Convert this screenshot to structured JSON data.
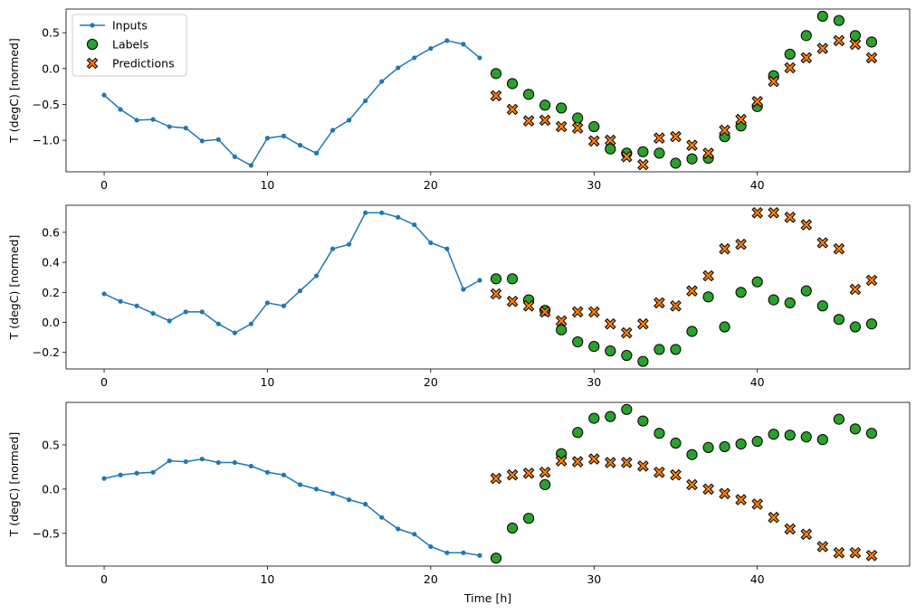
{
  "colors": {
    "inputs": "#1f77b4",
    "labels": "#2ca02c",
    "predictions": "#ff7f0e",
    "marker_edge": "#000000"
  },
  "legend": {
    "placement": "upper-left",
    "entries": [
      "Inputs",
      "Labels",
      "Predictions"
    ]
  },
  "chart_data": [
    {
      "type": "line+scatter",
      "ylabel": "T (degC) [normed]",
      "xlabel": "",
      "xlim": [
        -2.33,
        49.33
      ],
      "ylim": [
        -1.44,
        0.83
      ],
      "xticks": [
        0,
        10,
        20,
        30,
        40
      ],
      "yticks": [
        0.5,
        0.0,
        -0.5,
        -1.0
      ],
      "ytick_labels": [
        "0.5",
        "0.0",
        "−0.5",
        "−1.0"
      ],
      "grid": false,
      "series": [
        {
          "name": "Inputs",
          "x": [
            0,
            1,
            2,
            3,
            4,
            5,
            6,
            7,
            8,
            9,
            10,
            11,
            12,
            13,
            14,
            15,
            16,
            17,
            18,
            19,
            20,
            21,
            22,
            23
          ],
          "values": [
            -0.37,
            -0.57,
            -0.72,
            -0.71,
            -0.81,
            -0.83,
            -1.01,
            -0.99,
            -1.23,
            -1.35,
            -0.97,
            -0.94,
            -1.07,
            -1.18,
            -0.86,
            -0.72,
            -0.45,
            -0.18,
            0.01,
            0.15,
            0.28,
            0.39,
            0.34,
            0.15
          ]
        },
        {
          "name": "Labels",
          "x": [
            24,
            25,
            26,
            27,
            28,
            29,
            30,
            31,
            32,
            33,
            34,
            35,
            36,
            37,
            38,
            39,
            40,
            41,
            42,
            43,
            44,
            45,
            46,
            47
          ],
          "values": [
            -0.07,
            -0.21,
            -0.36,
            -0.51,
            -0.55,
            -0.69,
            -0.81,
            -1.12,
            -1.18,
            -1.16,
            -1.18,
            -1.32,
            -1.26,
            -1.25,
            -0.95,
            -0.8,
            -0.53,
            -0.1,
            0.2,
            0.46,
            0.73,
            0.67,
            0.46,
            0.37
          ]
        },
        {
          "name": "Predictions",
          "x": [
            24,
            25,
            26,
            27,
            28,
            29,
            30,
            31,
            32,
            33,
            34,
            35,
            36,
            37,
            38,
            39,
            40,
            41,
            42,
            43,
            44,
            45,
            46,
            47
          ],
          "values": [
            -0.38,
            -0.57,
            -0.73,
            -0.72,
            -0.81,
            -0.83,
            -1.01,
            -1.0,
            -1.23,
            -1.34,
            -0.97,
            -0.95,
            -1.07,
            -1.18,
            -0.86,
            -0.71,
            -0.46,
            -0.18,
            0.01,
            0.15,
            0.28,
            0.39,
            0.34,
            0.15
          ]
        }
      ]
    },
    {
      "type": "line+scatter",
      "ylabel": "T (degC) [normed]",
      "xlabel": "",
      "xlim": [
        -2.33,
        49.33
      ],
      "ylim": [
        -0.31,
        0.78
      ],
      "xticks": [
        0,
        10,
        20,
        30,
        40
      ],
      "yticks": [
        0.6,
        0.4,
        0.2,
        0.0,
        -0.2
      ],
      "ytick_labels": [
        "0.6",
        "0.4",
        "0.2",
        "0.0",
        "−0.2"
      ],
      "grid": false,
      "series": [
        {
          "name": "Inputs",
          "x": [
            0,
            1,
            2,
            3,
            4,
            5,
            6,
            7,
            8,
            9,
            10,
            11,
            12,
            13,
            14,
            15,
            16,
            17,
            18,
            19,
            20,
            21,
            22,
            23
          ],
          "values": [
            0.19,
            0.14,
            0.11,
            0.06,
            0.01,
            0.07,
            0.07,
            -0.01,
            -0.07,
            -0.01,
            0.13,
            0.11,
            0.21,
            0.31,
            0.49,
            0.52,
            0.73,
            0.73,
            0.7,
            0.65,
            0.53,
            0.49,
            0.22,
            0.28
          ]
        },
        {
          "name": "Labels",
          "x": [
            24,
            25,
            26,
            27,
            28,
            29,
            30,
            31,
            32,
            33,
            34,
            35,
            36,
            37,
            38,
            39,
            40,
            41,
            42,
            43,
            44,
            45,
            46,
            47
          ],
          "values": [
            0.29,
            0.29,
            0.15,
            0.08,
            -0.05,
            -0.13,
            -0.16,
            -0.19,
            -0.22,
            -0.26,
            -0.18,
            -0.18,
            -0.06,
            0.17,
            -0.03,
            0.2,
            0.27,
            0.15,
            0.13,
            0.21,
            0.11,
            0.02,
            -0.03,
            -0.01
          ]
        },
        {
          "name": "Predictions",
          "x": [
            24,
            25,
            26,
            27,
            28,
            29,
            30,
            31,
            32,
            33,
            34,
            35,
            36,
            37,
            38,
            39,
            40,
            41,
            42,
            43,
            44,
            45,
            46,
            47
          ],
          "values": [
            0.19,
            0.14,
            0.11,
            0.07,
            0.01,
            0.07,
            0.07,
            -0.01,
            -0.07,
            -0.01,
            0.13,
            0.11,
            0.21,
            0.31,
            0.49,
            0.52,
            0.73,
            0.73,
            0.7,
            0.65,
            0.53,
            0.49,
            0.22,
            0.28
          ]
        }
      ]
    },
    {
      "type": "line+scatter",
      "ylabel": "T (degC) [normed]",
      "xlabel": "Time [h]",
      "xlim": [
        -2.33,
        49.33
      ],
      "ylim": [
        -0.87,
        0.98
      ],
      "xticks": [
        0,
        10,
        20,
        30,
        40
      ],
      "yticks": [
        0.5,
        0.0,
        -0.5
      ],
      "ytick_labels": [
        "0.5",
        "0.0",
        "−0.5"
      ],
      "grid": false,
      "series": [
        {
          "name": "Inputs",
          "x": [
            0,
            1,
            2,
            3,
            4,
            5,
            6,
            7,
            8,
            9,
            10,
            11,
            12,
            13,
            14,
            15,
            16,
            17,
            18,
            19,
            20,
            21,
            22,
            23
          ],
          "values": [
            0.12,
            0.16,
            0.18,
            0.19,
            0.32,
            0.31,
            0.34,
            0.3,
            0.3,
            0.26,
            0.19,
            0.16,
            0.05,
            0.0,
            -0.05,
            -0.12,
            -0.17,
            -0.32,
            -0.45,
            -0.51,
            -0.65,
            -0.72,
            -0.72,
            -0.75
          ]
        },
        {
          "name": "Labels",
          "x": [
            24,
            25,
            26,
            27,
            28,
            29,
            30,
            31,
            32,
            33,
            34,
            35,
            36,
            37,
            38,
            39,
            40,
            41,
            42,
            43,
            44,
            45,
            46,
            47
          ],
          "values": [
            -0.78,
            -0.44,
            -0.33,
            0.05,
            0.4,
            0.64,
            0.8,
            0.82,
            0.9,
            0.77,
            0.63,
            0.52,
            0.39,
            0.47,
            0.48,
            0.51,
            0.54,
            0.62,
            0.61,
            0.59,
            0.56,
            0.79,
            0.68,
            0.63
          ]
        },
        {
          "name": "Predictions",
          "x": [
            24,
            25,
            26,
            27,
            28,
            29,
            30,
            31,
            32,
            33,
            34,
            35,
            36,
            37,
            38,
            39,
            40,
            41,
            42,
            43,
            44,
            45,
            46,
            47
          ],
          "values": [
            0.12,
            0.16,
            0.18,
            0.19,
            0.32,
            0.31,
            0.34,
            0.3,
            0.3,
            0.26,
            0.19,
            0.16,
            0.05,
            0.0,
            -0.05,
            -0.12,
            -0.17,
            -0.32,
            -0.45,
            -0.51,
            -0.65,
            -0.72,
            -0.72,
            -0.75
          ]
        }
      ]
    }
  ]
}
